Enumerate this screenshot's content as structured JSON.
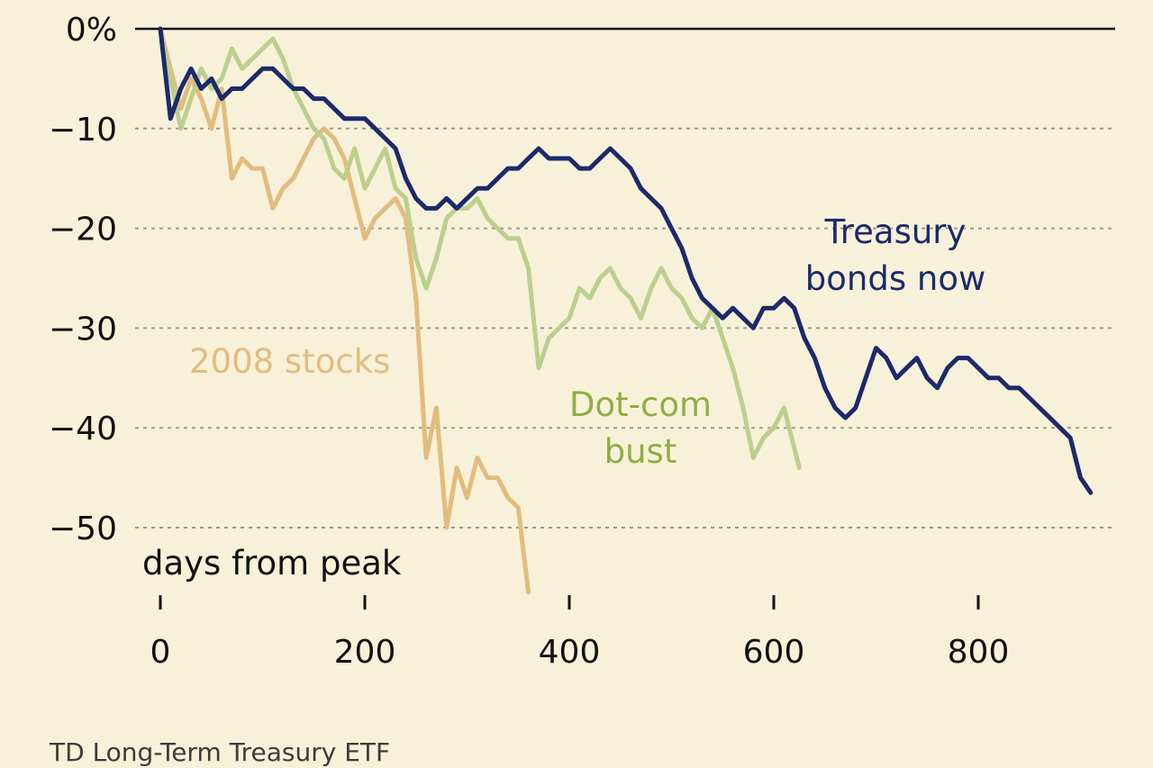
{
  "chart_data": {
    "type": "line",
    "xlabel": "days from peak",
    "ylabel": "",
    "xlim": [
      0,
      920
    ],
    "ylim": [
      -55,
      0
    ],
    "x_ticks": [
      0,
      200,
      400,
      600,
      800
    ],
    "x_tick_labels": [
      "0",
      "200",
      "400",
      "600",
      "800"
    ],
    "y_ticks": [
      0,
      -10,
      -20,
      -30,
      -40,
      -50
    ],
    "y_tick_labels": [
      "0%",
      "−10",
      "−20",
      "−30",
      "−40",
      "−50"
    ],
    "grid": "horizontal dotted",
    "series": [
      {
        "name": "2008 stocks",
        "color": "#E2BC7E",
        "points": [
          [
            0,
            0
          ],
          [
            10,
            -4
          ],
          [
            20,
            -8
          ],
          [
            30,
            -5
          ],
          [
            40,
            -7
          ],
          [
            50,
            -10
          ],
          [
            60,
            -6
          ],
          [
            70,
            -15
          ],
          [
            80,
            -13
          ],
          [
            90,
            -14
          ],
          [
            100,
            -14
          ],
          [
            110,
            -18
          ],
          [
            120,
            -16
          ],
          [
            130,
            -15
          ],
          [
            140,
            -13
          ],
          [
            150,
            -11
          ],
          [
            160,
            -10
          ],
          [
            170,
            -11
          ],
          [
            180,
            -13
          ],
          [
            190,
            -17
          ],
          [
            200,
            -21
          ],
          [
            210,
            -19
          ],
          [
            220,
            -18
          ],
          [
            230,
            -17
          ],
          [
            240,
            -19
          ],
          [
            250,
            -27
          ],
          [
            260,
            -43
          ],
          [
            270,
            -38
          ],
          [
            280,
            -50
          ],
          [
            290,
            -44
          ],
          [
            300,
            -47
          ],
          [
            310,
            -43
          ],
          [
            320,
            -45
          ],
          [
            330,
            -45
          ],
          [
            340,
            -47
          ],
          [
            350,
            -48
          ],
          [
            360,
            -56.5
          ]
        ]
      },
      {
        "name": "Dot-com bust",
        "color": "#BCCF8E",
        "points": [
          [
            0,
            0
          ],
          [
            10,
            -5
          ],
          [
            20,
            -10
          ],
          [
            30,
            -7
          ],
          [
            40,
            -4
          ],
          [
            50,
            -6
          ],
          [
            60,
            -5
          ],
          [
            70,
            -2
          ],
          [
            80,
            -4
          ],
          [
            90,
            -3
          ],
          [
            100,
            -2
          ],
          [
            110,
            -1
          ],
          [
            120,
            -3
          ],
          [
            130,
            -6
          ],
          [
            140,
            -8
          ],
          [
            150,
            -10
          ],
          [
            160,
            -11
          ],
          [
            170,
            -14
          ],
          [
            180,
            -15
          ],
          [
            190,
            -12
          ],
          [
            200,
            -16
          ],
          [
            210,
            -14
          ],
          [
            220,
            -12
          ],
          [
            230,
            -16
          ],
          [
            240,
            -17
          ],
          [
            250,
            -23
          ],
          [
            260,
            -26
          ],
          [
            270,
            -23
          ],
          [
            280,
            -19
          ],
          [
            290,
            -18
          ],
          [
            300,
            -18
          ],
          [
            310,
            -17
          ],
          [
            320,
            -19
          ],
          [
            330,
            -20
          ],
          [
            340,
            -21
          ],
          [
            350,
            -21
          ],
          [
            360,
            -24
          ],
          [
            370,
            -34
          ],
          [
            380,
            -31
          ],
          [
            390,
            -30
          ],
          [
            400,
            -29
          ],
          [
            410,
            -26
          ],
          [
            420,
            -27
          ],
          [
            430,
            -25
          ],
          [
            440,
            -24
          ],
          [
            450,
            -26
          ],
          [
            460,
            -27
          ],
          [
            470,
            -29
          ],
          [
            480,
            -26
          ],
          [
            490,
            -24
          ],
          [
            500,
            -26
          ],
          [
            510,
            -27
          ],
          [
            520,
            -29
          ],
          [
            530,
            -30
          ],
          [
            540,
            -28
          ],
          [
            550,
            -31
          ],
          [
            560,
            -34
          ],
          [
            570,
            -38
          ],
          [
            580,
            -43
          ],
          [
            590,
            -41
          ],
          [
            600,
            -40
          ],
          [
            610,
            -38
          ],
          [
            620,
            -42
          ],
          [
            625,
            -44
          ]
        ]
      },
      {
        "name": "Treasury bonds now",
        "color": "#1C2A6B",
        "points": [
          [
            0,
            0
          ],
          [
            10,
            -9
          ],
          [
            20,
            -6
          ],
          [
            30,
            -4
          ],
          [
            40,
            -6
          ],
          [
            50,
            -5
          ],
          [
            60,
            -7
          ],
          [
            70,
            -6
          ],
          [
            80,
            -6
          ],
          [
            90,
            -5
          ],
          [
            100,
            -4
          ],
          [
            110,
            -4
          ],
          [
            120,
            -5
          ],
          [
            130,
            -6
          ],
          [
            140,
            -6
          ],
          [
            150,
            -7
          ],
          [
            160,
            -7
          ],
          [
            170,
            -8
          ],
          [
            180,
            -9
          ],
          [
            190,
            -9
          ],
          [
            200,
            -9
          ],
          [
            210,
            -10
          ],
          [
            220,
            -11
          ],
          [
            230,
            -12
          ],
          [
            240,
            -15
          ],
          [
            250,
            -17
          ],
          [
            260,
            -18
          ],
          [
            270,
            -18
          ],
          [
            280,
            -17
          ],
          [
            290,
            -18
          ],
          [
            300,
            -17
          ],
          [
            310,
            -16
          ],
          [
            320,
            -16
          ],
          [
            330,
            -15
          ],
          [
            340,
            -14
          ],
          [
            350,
            -14
          ],
          [
            360,
            -13
          ],
          [
            370,
            -12
          ],
          [
            380,
            -13
          ],
          [
            390,
            -13
          ],
          [
            400,
            -13
          ],
          [
            410,
            -14
          ],
          [
            420,
            -14
          ],
          [
            430,
            -13
          ],
          [
            440,
            -12
          ],
          [
            450,
            -13
          ],
          [
            460,
            -14
          ],
          [
            470,
            -16
          ],
          [
            480,
            -17
          ],
          [
            490,
            -18
          ],
          [
            500,
            -20
          ],
          [
            510,
            -22
          ],
          [
            520,
            -25
          ],
          [
            530,
            -27
          ],
          [
            540,
            -28
          ],
          [
            550,
            -29
          ],
          [
            560,
            -28
          ],
          [
            570,
            -29
          ],
          [
            580,
            -30
          ],
          [
            590,
            -28
          ],
          [
            600,
            -28
          ],
          [
            610,
            -27
          ],
          [
            620,
            -28
          ],
          [
            630,
            -31
          ],
          [
            640,
            -33
          ],
          [
            650,
            -36
          ],
          [
            660,
            -38
          ],
          [
            670,
            -39
          ],
          [
            680,
            -38
          ],
          [
            690,
            -35
          ],
          [
            700,
            -32
          ],
          [
            710,
            -33
          ],
          [
            720,
            -35
          ],
          [
            730,
            -34
          ],
          [
            740,
            -33
          ],
          [
            750,
            -35
          ],
          [
            760,
            -36
          ],
          [
            770,
            -34
          ],
          [
            780,
            -33
          ],
          [
            790,
            -33
          ],
          [
            800,
            -34
          ],
          [
            810,
            -35
          ],
          [
            820,
            -35
          ],
          [
            830,
            -36
          ],
          [
            840,
            -36
          ],
          [
            850,
            -37
          ],
          [
            860,
            -38
          ],
          [
            870,
            -39
          ],
          [
            880,
            -40
          ],
          [
            890,
            -41
          ],
          [
            900,
            -45
          ],
          [
            910,
            -46.5
          ]
        ]
      }
    ],
    "annotations": [
      {
        "text": "2008 stocks",
        "color": "#E2BC7E"
      },
      {
        "text": "Dot-com",
        "color": "#8FAE45"
      },
      {
        "text": "bust",
        "color": "#8FAE45"
      },
      {
        "text": "Treasury",
        "color": "#1C2A6B"
      },
      {
        "text": "bonds now",
        "color": "#1C2A6B"
      }
    ]
  },
  "source_note": "TD Long-Term Treasury ETF"
}
